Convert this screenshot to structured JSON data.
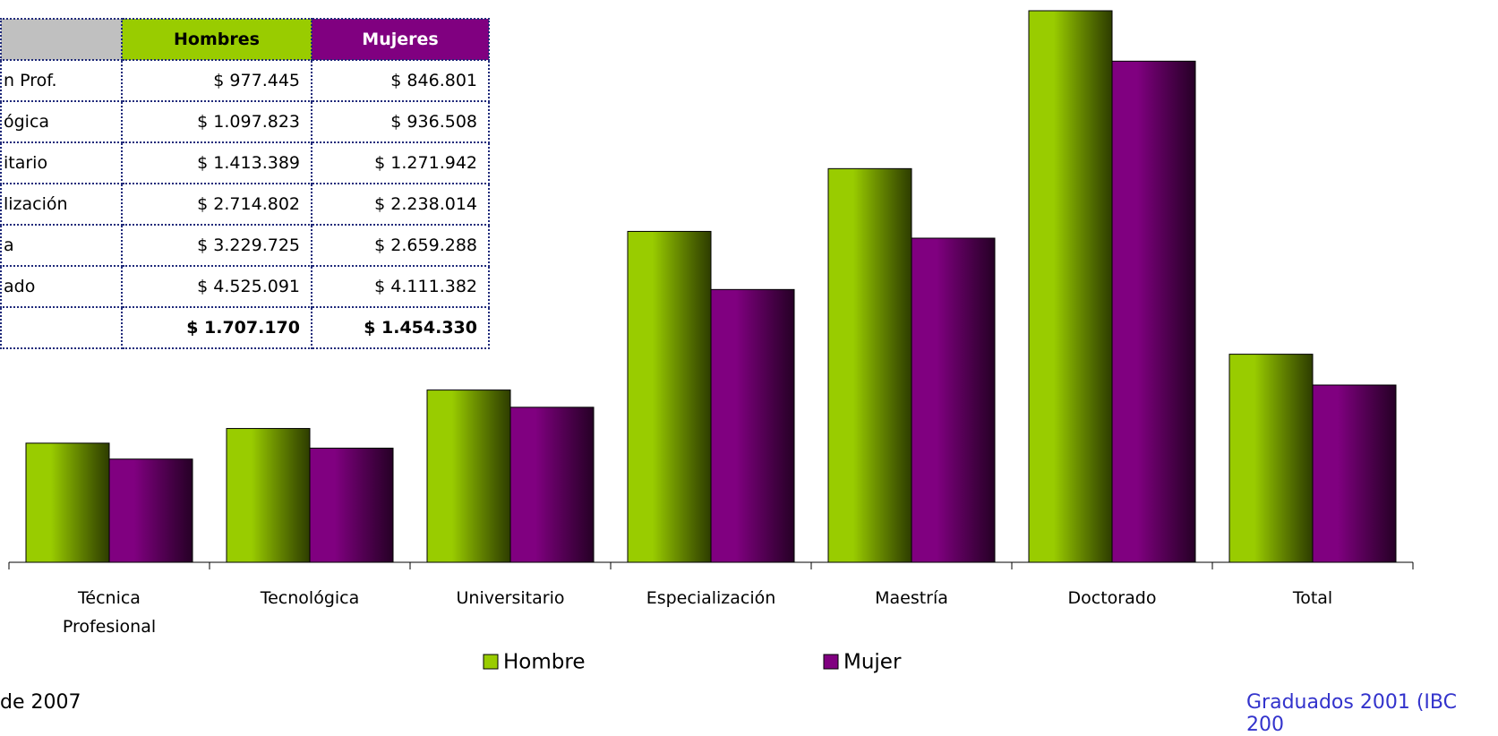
{
  "chart_data": {
    "type": "bar",
    "categories": [
      "Técnica Profesional",
      "Tecnológica",
      "Universitario",
      "Especialización",
      "Maestría",
      "Doctorado",
      "Total"
    ],
    "series": [
      {
        "name": "Hombre",
        "color": "#99cc00",
        "values": [
          977445,
          1097823,
          1413389,
          2714802,
          3229725,
          4525091,
          1707170
        ],
        "value_labels": [
          "$ 977.445",
          "$ 1.097.823",
          "$ 1.413.389",
          "$ 2.714.802",
          "$ 3.229.725",
          "$ 4.525.091",
          "$ 1.707.170"
        ]
      },
      {
        "name": "Mujer",
        "color": "#800080",
        "values": [
          846801,
          936508,
          1271942,
          2238014,
          2659288,
          4111382,
          1454330
        ],
        "value_labels": [
          "$ 846.801",
          "$ 936.508",
          "$ 1.271.942",
          "$ 2.238.014",
          "$ 2.659.288",
          "$ 4.111.382",
          "$ 1.454.330"
        ]
      }
    ]
  },
  "table": {
    "headers": [
      "Hombres",
      "Mujeres"
    ],
    "row_labels": [
      "n Prof.",
      "ógica",
      "itario",
      "lización",
      "a",
      "ado",
      null
    ]
  },
  "notes": [
    "de 2007",
    "Graduados 2001 (IBC 200"
  ]
}
